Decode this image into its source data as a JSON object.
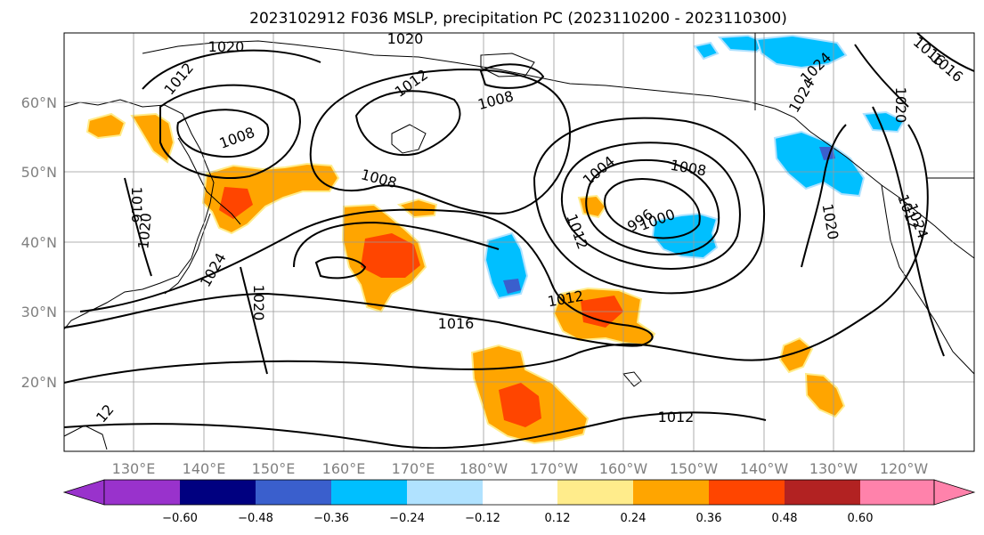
{
  "figure": {
    "title": "2023102912 F036 MSLP, precipitation PC (2023110200 - 2023110300)"
  },
  "map": {
    "lon_ticks": [
      "130°E",
      "140°E",
      "150°E",
      "160°E",
      "170°E",
      "180°W",
      "170°W",
      "160°W",
      "150°W",
      "140°W",
      "130°W",
      "120°W"
    ],
    "lat_ticks": [
      "60°N",
      "50°N",
      "40°N",
      "30°N",
      "20°N"
    ],
    "isobar_labels": [
      "1020",
      "1020",
      "1012",
      "1012",
      "1008",
      "1008",
      "1008",
      "1004",
      "1008",
      "1016",
      "1016",
      "1024",
      "1024",
      "1020",
      "1012",
      "1012",
      "1000",
      "996",
      "1012",
      "1016",
      "1012",
      "1020",
      "1020",
      "1024",
      "1016",
      "1020",
      "1024",
      "12"
    ]
  },
  "colorbar": {
    "ticks": [
      "−0.60",
      "−0.48",
      "−0.36",
      "−0.24",
      "−0.12",
      "0.12",
      "0.24",
      "0.36",
      "0.48",
      "0.60"
    ],
    "colors": [
      "#9932CC",
      "#000080",
      "#3A5FCD",
      "#00BFFF",
      "#B0E2FF",
      "#FFFFFF",
      "#FFEC8B",
      "#FFA500",
      "#FF4500",
      "#B22222",
      "#FF82AB"
    ]
  }
}
